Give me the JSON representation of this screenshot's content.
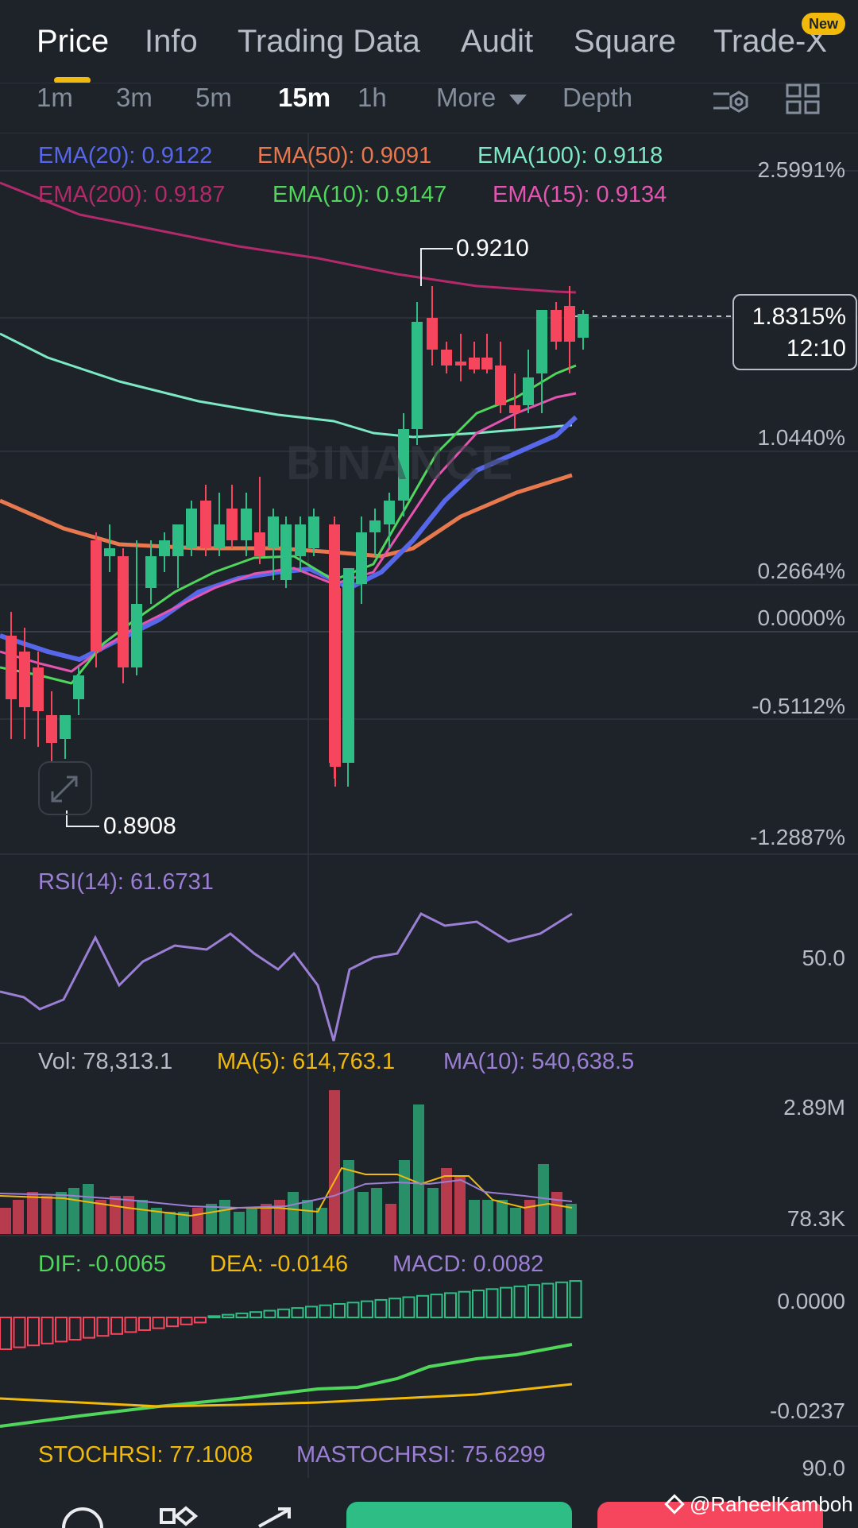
{
  "tabs": [
    {
      "label": "Price",
      "active": true
    },
    {
      "label": "Info"
    },
    {
      "label": "Trading Data"
    },
    {
      "label": "Audit"
    },
    {
      "label": "Square"
    },
    {
      "label": "Trade-X"
    }
  ],
  "new_badge": "New",
  "timeframes": [
    {
      "label": "1m"
    },
    {
      "label": "3m"
    },
    {
      "label": "5m"
    },
    {
      "label": "15m",
      "active": true
    },
    {
      "label": "1h"
    }
  ],
  "more_label": "More",
  "depth_label": "Depth",
  "ema": {
    "ema20": "EMA(20): 0.9122",
    "ema50": "EMA(50): 0.9091",
    "ema100": "EMA(100): 0.9118",
    "ema200": "EMA(200): 0.9187",
    "ema10": "EMA(10): 0.9147",
    "ema15": "EMA(15): 0.9134"
  },
  "price_axis": [
    "2.5991%",
    "1.0440%",
    "0.2664%",
    "0.0000%",
    "-0.5112%",
    "-1.2887%"
  ],
  "current_price": {
    "percent": "1.8315%",
    "countdown": "12:10"
  },
  "high_label": "0.9210",
  "low_label": "0.8908",
  "watermark": "BINANCE",
  "rsi": {
    "label": "RSI(14): 61.6731",
    "axis": "50.0"
  },
  "volume": {
    "vol": "Vol: 78,313.1",
    "ma5": "MA(5): 614,763.1",
    "ma10": "MA(10): 540,638.5",
    "axis_top": "2.89M",
    "axis_bottom": "78.3K"
  },
  "macd": {
    "dif": "DIF: -0.0065",
    "dea": "DEA: -0.0146",
    "macd": "MACD: 0.0082",
    "axis_top": "0.0000",
    "axis_bottom": "-0.0237"
  },
  "stochrsi": {
    "stoch": "STOCHRSI: 77.1008",
    "mastoch": "MASTOCHRSI: 75.6299",
    "axis": "90.0"
  },
  "credit": "@RaheelKamboh",
  "colors": {
    "up": "#2ebd85",
    "down": "#f6465d",
    "ema20": "#5767ea",
    "ema50": "#e8794f",
    "ema100": "#7de8c4",
    "ema200": "#b22a6a",
    "ema10": "#4fd65b",
    "ema15": "#e355b0",
    "accent": "#f0b90b"
  }
}
